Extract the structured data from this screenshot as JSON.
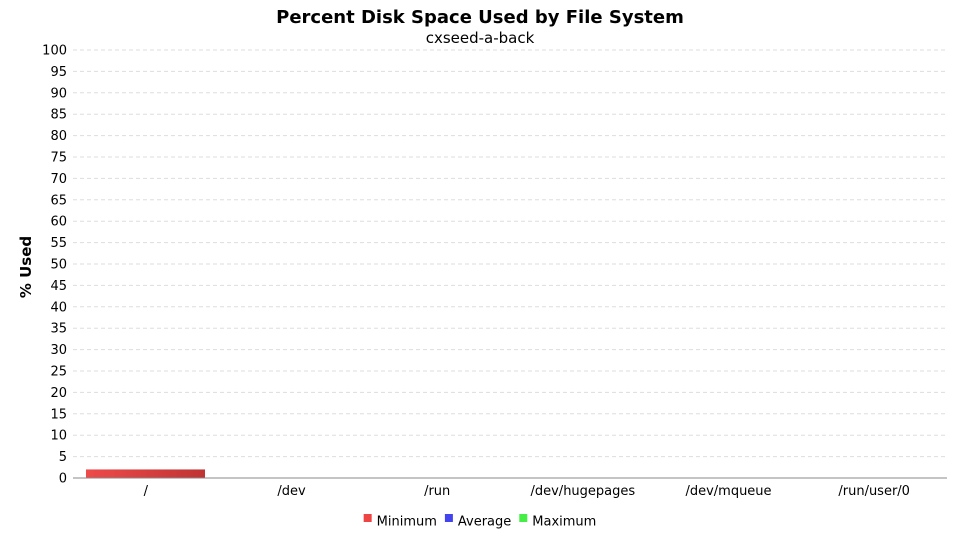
{
  "chart_data": {
    "type": "bar",
    "title": "Percent Disk Space Used by File System",
    "subtitle": "cxseed-a-back",
    "ylabel": "% Used",
    "xlabel": "",
    "ylim": [
      0,
      100
    ],
    "ytick_step": 5,
    "grid": true,
    "legend_position": "bottom",
    "categories": [
      "/",
      "/dev",
      "/run",
      "/dev/hugepages",
      "/dev/mqueue",
      "/run/user/0"
    ],
    "series": [
      {
        "name": "Minimum",
        "color": "#ee4444",
        "values": [
          2,
          0,
          0,
          0,
          0,
          0
        ]
      },
      {
        "name": "Average",
        "color": "#4444ee",
        "values": [
          0,
          0,
          0,
          0,
          0,
          0
        ]
      },
      {
        "name": "Maximum",
        "color": "#44ee44",
        "values": [
          0,
          0,
          0,
          0,
          0,
          0
        ]
      }
    ]
  }
}
